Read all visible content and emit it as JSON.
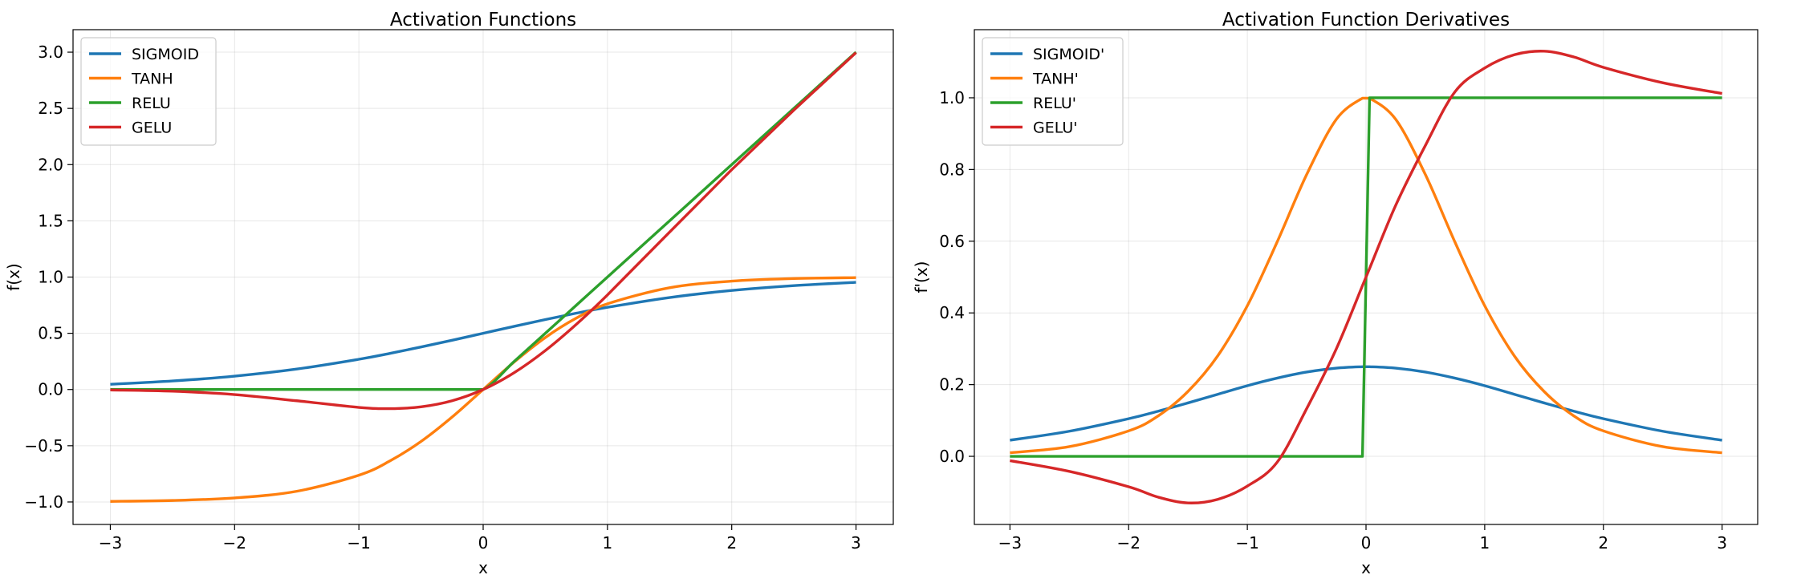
{
  "chart_data": [
    {
      "type": "line",
      "title": "Activation Functions",
      "xlabel": "x",
      "ylabel": "f(x)",
      "xlim": [
        -3.3,
        3.3
      ],
      "ylim": [
        -1.2,
        3.2
      ],
      "xticks": [
        -3,
        -2,
        -1,
        0,
        1,
        2,
        3
      ],
      "yticks": [
        -1.0,
        -0.5,
        0.0,
        0.5,
        1.0,
        1.5,
        2.0,
        2.5,
        3.0
      ],
      "xtick_labels": [
        "−3",
        "−2",
        "−1",
        "0",
        "1",
        "2",
        "3"
      ],
      "ytick_labels": [
        "−1.0",
        "−0.5",
        "0.0",
        "0.5",
        "1.0",
        "1.5",
        "2.0",
        "2.5",
        "3.0"
      ],
      "grid": true,
      "legend_position": "upper-left",
      "x": [
        -3.0,
        -2.5,
        -2.0,
        -1.5,
        -1.0,
        -0.75,
        -0.5,
        -0.25,
        0.0,
        0.25,
        0.5,
        0.75,
        1.0,
        1.5,
        2.0,
        2.5,
        3.0
      ],
      "series": [
        {
          "name": "SIGMOID",
          "color": "#1f77b4",
          "values": [
            0.047,
            0.076,
            0.119,
            0.182,
            0.269,
            0.321,
            0.378,
            0.438,
            0.5,
            0.562,
            0.622,
            0.679,
            0.731,
            0.818,
            0.881,
            0.924,
            0.953
          ]
        },
        {
          "name": "TANH",
          "color": "#ff7f0e",
          "values": [
            -0.995,
            -0.987,
            -0.964,
            -0.905,
            -0.762,
            -0.635,
            -0.462,
            -0.245,
            0.0,
            0.245,
            0.462,
            0.635,
            0.762,
            0.905,
            0.964,
            0.987,
            0.995
          ]
        },
        {
          "name": "RELU",
          "color": "#2ca02c",
          "values": [
            0.0,
            0.0,
            0.0,
            0.0,
            0.0,
            0.0,
            0.0,
            0.0,
            0.0,
            0.25,
            0.5,
            0.75,
            1.0,
            1.5,
            2.0,
            2.5,
            3.0
          ]
        },
        {
          "name": "GELU",
          "color": "#d62728",
          "values": [
            -0.004,
            -0.015,
            -0.045,
            -0.1,
            -0.159,
            -0.17,
            -0.154,
            -0.1,
            0.0,
            0.15,
            0.346,
            0.58,
            0.841,
            1.4,
            1.955,
            2.485,
            2.996
          ]
        }
      ]
    },
    {
      "type": "line",
      "title": "Activation Function Derivatives",
      "xlabel": "x",
      "ylabel": "f'(x)",
      "xlim": [
        -3.3,
        3.3
      ],
      "ylim": [
        -0.19,
        1.19
      ],
      "xticks": [
        -3,
        -2,
        -1,
        0,
        1,
        2,
        3
      ],
      "yticks": [
        0.0,
        0.2,
        0.4,
        0.6,
        0.8,
        1.0
      ],
      "xtick_labels": [
        "−3",
        "−2",
        "−1",
        "0",
        "1",
        "2",
        "3"
      ],
      "ytick_labels": [
        "0.0",
        "0.2",
        "0.4",
        "0.6",
        "0.8",
        "1.0"
      ],
      "grid": true,
      "legend_position": "upper-left",
      "x": [
        -3.0,
        -2.5,
        -2.0,
        -1.75,
        -1.5,
        -1.25,
        -1.0,
        -0.75,
        -0.5,
        -0.25,
        -0.03,
        0.03,
        0.25,
        0.5,
        0.75,
        1.0,
        1.25,
        1.5,
        1.75,
        2.0,
        2.5,
        3.0
      ],
      "series": [
        {
          "name": "SIGMOID'",
          "color": "#1f77b4",
          "values": [
            0.045,
            0.07,
            0.105,
            0.126,
            0.149,
            0.173,
            0.197,
            0.218,
            0.235,
            0.246,
            0.25,
            0.25,
            0.246,
            0.235,
            0.218,
            0.197,
            0.173,
            0.149,
            0.126,
            0.105,
            0.07,
            0.045
          ]
        },
        {
          "name": "TANH'",
          "color": "#ff7f0e",
          "values": [
            0.01,
            0.027,
            0.071,
            0.113,
            0.181,
            0.28,
            0.42,
            0.597,
            0.786,
            0.94,
            0.999,
            0.999,
            0.94,
            0.786,
            0.597,
            0.42,
            0.28,
            0.181,
            0.113,
            0.071,
            0.027,
            0.01
          ]
        },
        {
          "name": "RELU'",
          "color": "#2ca02c",
          "values": [
            0.0,
            0.0,
            0.0,
            0.0,
            0.0,
            0.0,
            0.0,
            0.0,
            0.0,
            0.0,
            0.0,
            1.0,
            1.0,
            1.0,
            1.0,
            1.0,
            1.0,
            1.0,
            1.0,
            1.0,
            1.0,
            1.0
          ]
        },
        {
          "name": "GELU'",
          "color": "#d62728",
          "values": [
            -0.012,
            -0.042,
            -0.085,
            -0.114,
            -0.13,
            -0.12,
            -0.083,
            -0.017,
            0.133,
            0.3,
            0.476,
            0.524,
            0.7,
            0.867,
            1.017,
            1.083,
            1.12,
            1.13,
            1.114,
            1.085,
            1.042,
            1.012
          ]
        }
      ]
    }
  ]
}
